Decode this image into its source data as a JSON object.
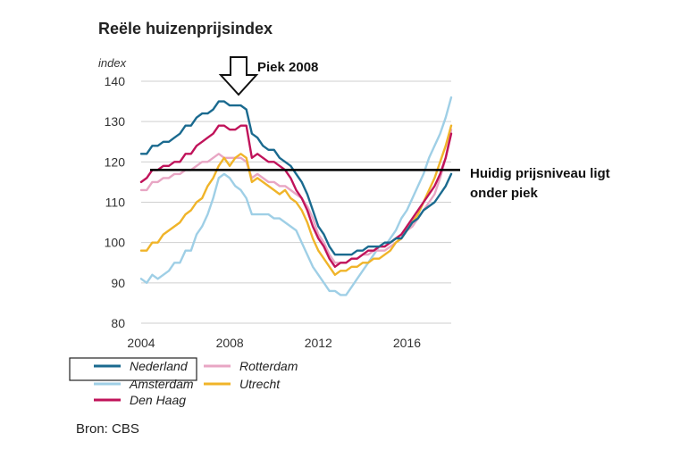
{
  "chart_data": {
    "type": "line",
    "title": "Reële huizenprijsindex",
    "ylabel": "index",
    "xlabel": "",
    "xlim": [
      2004,
      2018
    ],
    "ylim": [
      80,
      140
    ],
    "x_ticks": [
      "2004",
      "2008",
      "2012",
      "2016"
    ],
    "x_tick_values": [
      2004,
      2008,
      2012,
      2016
    ],
    "y_ticks": [
      "140",
      "130",
      "120",
      "110",
      "100",
      "90",
      "80"
    ],
    "y_tick_values": [
      140,
      130,
      120,
      110,
      100,
      90,
      80
    ],
    "grid": true,
    "legend_position": "bottom",
    "x": [
      2004.0,
      2004.25,
      2004.5,
      2004.75,
      2005.0,
      2005.25,
      2005.5,
      2005.75,
      2006.0,
      2006.25,
      2006.5,
      2006.75,
      2007.0,
      2007.25,
      2007.5,
      2007.75,
      2008.0,
      2008.25,
      2008.5,
      2008.75,
      2009.0,
      2009.25,
      2009.5,
      2009.75,
      2010.0,
      2010.25,
      2010.5,
      2010.75,
      2011.0,
      2011.25,
      2011.5,
      2011.75,
      2012.0,
      2012.25,
      2012.5,
      2012.75,
      2013.0,
      2013.25,
      2013.5,
      2013.75,
      2014.0,
      2014.25,
      2014.5,
      2014.75,
      2015.0,
      2015.25,
      2015.5,
      2015.75,
      2016.0,
      2016.25,
      2016.5,
      2016.75,
      2017.0,
      2017.25,
      2017.5,
      2017.75,
      2018.0
    ],
    "series": [
      {
        "name": "Nederland",
        "color": "#1a6a8f",
        "values": [
          122,
          122,
          124,
          124,
          125,
          125,
          126,
          127,
          129,
          129,
          131,
          132,
          132,
          133,
          135,
          135,
          134,
          134,
          134,
          133,
          127,
          126,
          124,
          123,
          123,
          121,
          120,
          119,
          117,
          115,
          112,
          108,
          104,
          102,
          99,
          97,
          97,
          97,
          97,
          98,
          98,
          99,
          99,
          99,
          100,
          100,
          101,
          101,
          103,
          105,
          106,
          108,
          109,
          110,
          112,
          114,
          117
        ]
      },
      {
        "name": "Amsterdam",
        "color": "#9fcfe6",
        "values": [
          91,
          90,
          92,
          91,
          92,
          93,
          95,
          95,
          98,
          98,
          102,
          104,
          107,
          111,
          116,
          117,
          116,
          114,
          113,
          111,
          107,
          107,
          107,
          107,
          106,
          106,
          105,
          104,
          103,
          100,
          97,
          94,
          92,
          90,
          88,
          88,
          87,
          87,
          89,
          91,
          93,
          95,
          97,
          99,
          99,
          101,
          103,
          106,
          108,
          111,
          114,
          117,
          121,
          124,
          127,
          131,
          136
        ]
      },
      {
        "name": "Den Haag",
        "color": "#c0135a",
        "values": [
          115,
          116,
          118,
          118,
          119,
          119,
          120,
          120,
          122,
          122,
          124,
          125,
          126,
          127,
          129,
          129,
          128,
          128,
          129,
          129,
          121,
          122,
          121,
          120,
          120,
          119,
          118,
          116,
          113,
          111,
          108,
          104,
          101,
          99,
          96,
          94,
          95,
          95,
          96,
          96,
          97,
          98,
          98,
          99,
          99,
          100,
          101,
          102,
          104,
          106,
          108,
          110,
          112,
          114,
          117,
          121,
          127
        ]
      },
      {
        "name": "Rotterdam",
        "color": "#e8a6c4",
        "values": [
          113,
          113,
          115,
          115,
          116,
          116,
          117,
          117,
          118,
          118,
          119,
          120,
          120,
          121,
          122,
          121,
          121,
          121,
          121,
          120,
          116,
          117,
          116,
          115,
          115,
          114,
          114,
          113,
          112,
          111,
          109,
          106,
          102,
          100,
          97,
          95,
          95,
          95,
          96,
          96,
          97,
          97,
          98,
          98,
          98,
          99,
          100,
          101,
          103,
          104,
          106,
          108,
          110,
          112,
          116,
          121,
          128
        ]
      },
      {
        "name": "Utrecht",
        "color": "#f0b429",
        "values": [
          98,
          98,
          100,
          100,
          102,
          103,
          104,
          105,
          107,
          108,
          110,
          111,
          114,
          116,
          119,
          121,
          119,
          121,
          122,
          121,
          115,
          116,
          115,
          114,
          113,
          112,
          113,
          111,
          110,
          108,
          105,
          101,
          98,
          96,
          94,
          92,
          93,
          93,
          94,
          94,
          95,
          95,
          96,
          96,
          97,
          98,
          100,
          101,
          103,
          105,
          107,
          110,
          113,
          116,
          120,
          124,
          129
        ]
      }
    ],
    "reference_line": {
      "value": 118
    },
    "annotations": [
      {
        "text": "Piek 2008"
      },
      {
        "text": "Huidig prijsniveau ligt"
      },
      {
        "text": "onder piek"
      }
    ],
    "source": "Bron: CBS"
  }
}
